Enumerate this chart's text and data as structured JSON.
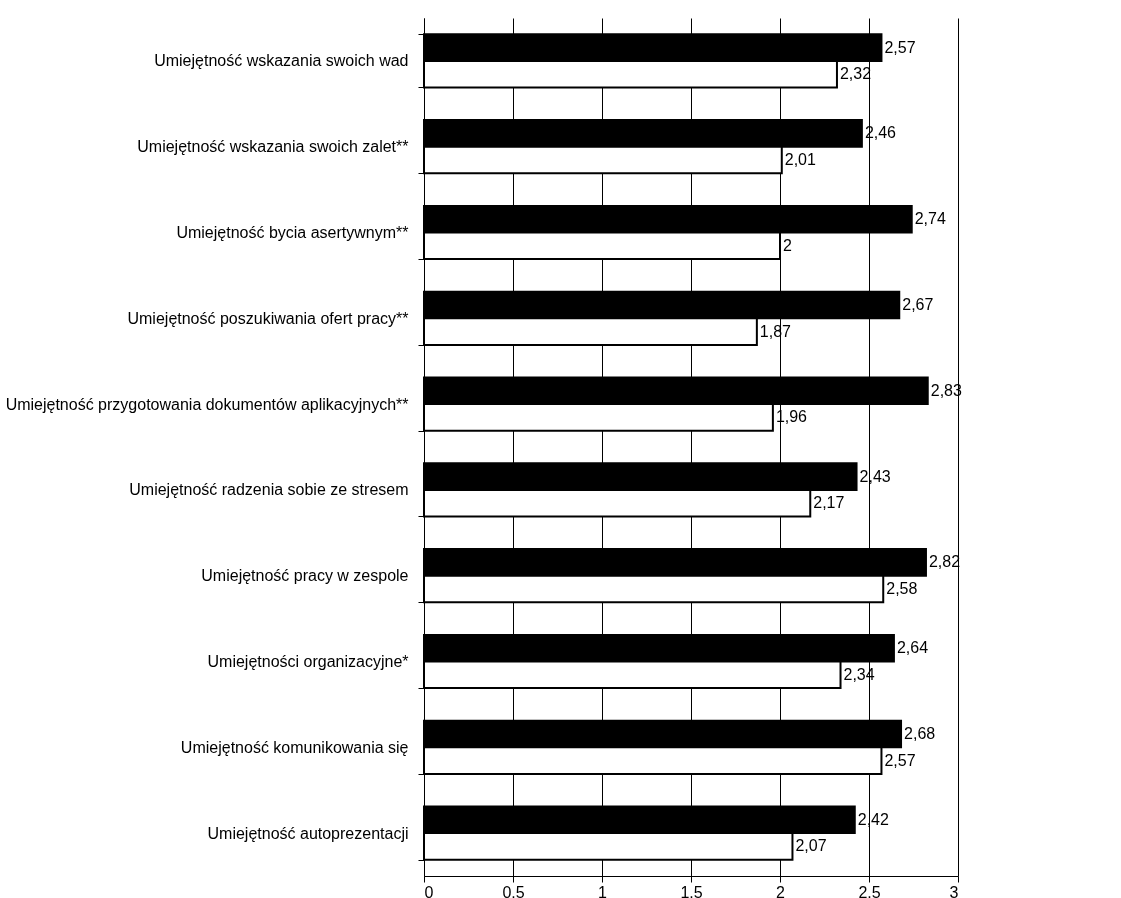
{
  "chart_data": {
    "type": "bar",
    "orientation": "horizontal",
    "categories": [
      "Umiejętność wskazania swoich wad",
      "Umiejętność wskazania swoich zalet**",
      "Umiejętność bycia asertywnym**",
      "Umiejętność poszukiwania ofert pracy**",
      "Umiejętność przygotowania dokumentów aplikacyjnych**",
      "Umiejętność radzenia sobie ze stresem",
      "Umiejętność pracy w zespole",
      "Umiejętności organizacyjne*",
      "Umiejętność komunikowania się",
      "Umiejętność autoprezentacji "
    ],
    "series": [
      {
        "color": "#000000",
        "values": [
          2.57,
          2.46,
          2.74,
          2.67,
          2.83,
          2.43,
          2.82,
          2.64,
          2.68,
          2.42
        ],
        "value_labels": [
          "2,57",
          "2,46",
          "2,74",
          "2,67",
          "2,83",
          "2,43",
          "2,82",
          "2,64",
          "2,68",
          "2,42"
        ]
      },
      {
        "color": "#ffffff",
        "values": [
          2.32,
          2.01,
          2,
          1.87,
          1.96,
          2.17,
          2.58,
          2.34,
          2.57,
          2.07
        ],
        "value_labels": [
          "2,32",
          "2,01",
          "2",
          "1,87",
          "1,96",
          "2,17",
          "2,58",
          "2,34",
          "2,57",
          "2,07"
        ]
      }
    ],
    "xlim": [
      0,
      3
    ],
    "xticks": [
      0,
      0.5,
      1,
      1.5,
      2,
      2.5,
      3
    ],
    "grid": "x",
    "legend": false
  }
}
